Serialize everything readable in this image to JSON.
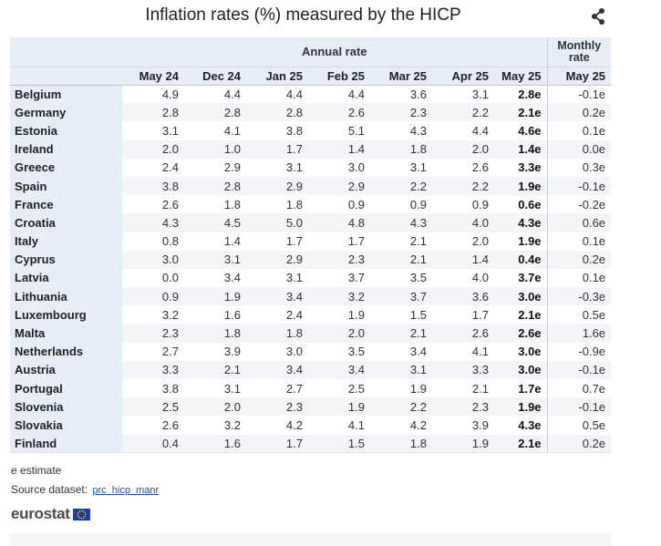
{
  "title": "Inflation rates (%) measured by the HICP",
  "share_icon": "share-icon",
  "header": {
    "group_annual": "Annual rate",
    "group_monthly_line1": "Monthly",
    "group_monthly_line2": "rate",
    "columns": [
      "May 24",
      "Dec 24",
      "Jan 25",
      "Feb 25",
      "Mar 25",
      "Apr 25",
      "May 25",
      "May 25"
    ]
  },
  "rows": [
    {
      "country": "Belgium",
      "values": [
        "4.9",
        "4.4",
        "4.4",
        "4.4",
        "3.6",
        "3.1",
        "2.8e",
        "-0.1e"
      ]
    },
    {
      "country": "Germany",
      "values": [
        "2.8",
        "2.8",
        "2.8",
        "2.6",
        "2.3",
        "2.2",
        "2.1e",
        "0.2e"
      ]
    },
    {
      "country": "Estonia",
      "values": [
        "3.1",
        "4.1",
        "3.8",
        "5.1",
        "4.3",
        "4.4",
        "4.6e",
        "0.1e"
      ]
    },
    {
      "country": "Ireland",
      "values": [
        "2.0",
        "1.0",
        "1.7",
        "1.4",
        "1.8",
        "2.0",
        "1.4e",
        "0.0e"
      ]
    },
    {
      "country": "Greece",
      "values": [
        "2.4",
        "2.9",
        "3.1",
        "3.0",
        "3.1",
        "2.6",
        "3.3e",
        "0.3e"
      ]
    },
    {
      "country": "Spain",
      "values": [
        "3.8",
        "2.8",
        "2.9",
        "2.9",
        "2.2",
        "2.2",
        "1.9e",
        "-0.1e"
      ]
    },
    {
      "country": "France",
      "values": [
        "2.6",
        "1.8",
        "1.8",
        "0.9",
        "0.9",
        "0.9",
        "0.6e",
        "-0.2e"
      ]
    },
    {
      "country": "Croatia",
      "values": [
        "4.3",
        "4.5",
        "5.0",
        "4.8",
        "4.3",
        "4.0",
        "4.3e",
        "0.6e"
      ]
    },
    {
      "country": "Italy",
      "values": [
        "0.8",
        "1.4",
        "1.7",
        "1.7",
        "2.1",
        "2.0",
        "1.9e",
        "0.1e"
      ]
    },
    {
      "country": "Cyprus",
      "values": [
        "3.0",
        "3.1",
        "2.9",
        "2.3",
        "2.1",
        "1.4",
        "0.4e",
        "0.2e"
      ]
    },
    {
      "country": "Latvia",
      "values": [
        "0.0",
        "3.4",
        "3.1",
        "3.7",
        "3.5",
        "4.0",
        "3.7e",
        "0.1e"
      ]
    },
    {
      "country": "Lithuania",
      "values": [
        "0.9",
        "1.9",
        "3.4",
        "3.2",
        "3.7",
        "3.6",
        "3.0e",
        "-0.3e"
      ]
    },
    {
      "country": "Luxembourg",
      "values": [
        "3.2",
        "1.6",
        "2.4",
        "1.9",
        "1.5",
        "1.7",
        "2.1e",
        "0.5e"
      ]
    },
    {
      "country": "Malta",
      "values": [
        "2.3",
        "1.8",
        "1.8",
        "2.0",
        "2.1",
        "2.6",
        "2.6e",
        "1.6e"
      ]
    },
    {
      "country": "Netherlands",
      "values": [
        "2.7",
        "3.9",
        "3.0",
        "3.5",
        "3.4",
        "4.1",
        "3.0e",
        "-0.9e"
      ]
    },
    {
      "country": "Austria",
      "values": [
        "3.3",
        "2.1",
        "3.4",
        "3.4",
        "3.1",
        "3.3",
        "3.0e",
        "-0.1e"
      ]
    },
    {
      "country": "Portugal",
      "values": [
        "3.8",
        "3.1",
        "2.7",
        "2.5",
        "1.9",
        "2.1",
        "1.7e",
        "0.7e"
      ]
    },
    {
      "country": "Slovenia",
      "values": [
        "2.5",
        "2.0",
        "2.3",
        "1.9",
        "2.2",
        "2.3",
        "1.9e",
        "-0.1e"
      ]
    },
    {
      "country": "Slovakia",
      "values": [
        "2.6",
        "3.2",
        "4.2",
        "4.1",
        "4.2",
        "3.9",
        "4.3e",
        "0.5e"
      ]
    },
    {
      "country": "Finland",
      "values": [
        "0.4",
        "1.6",
        "1.7",
        "1.5",
        "1.8",
        "1.9",
        "2.1e",
        "0.2e"
      ]
    }
  ],
  "footnote": "e estimate",
  "source_label": "Source dataset:",
  "source_link": "prc_hicp_manr",
  "logo_text": "eurostat",
  "logo_icon": "eu-flag-icon"
}
